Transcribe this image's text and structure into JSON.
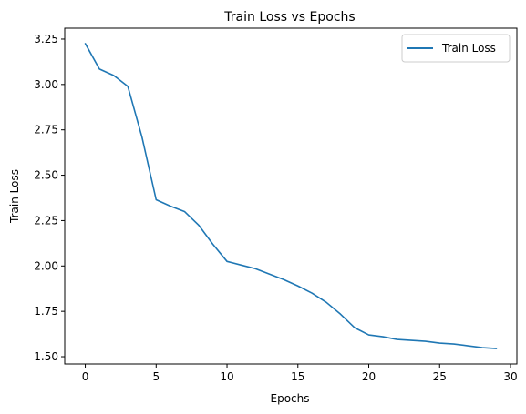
{
  "chart_data": {
    "type": "line",
    "title": "Train Loss vs Epochs",
    "xlabel": "Epochs",
    "ylabel": "Train Loss",
    "xlim": [
      -1.45,
      30.45
    ],
    "ylim": [
      1.46,
      3.31
    ],
    "xticks": [
      0,
      5,
      10,
      15,
      20,
      25,
      30
    ],
    "yticks": [
      1.5,
      1.75,
      2.0,
      2.25,
      2.5,
      2.75,
      3.0,
      3.25
    ],
    "ytick_labels": [
      "1.50",
      "1.75",
      "2.00",
      "2.25",
      "2.50",
      "2.75",
      "3.00",
      "3.25"
    ],
    "grid": false,
    "legend_position": "top-right",
    "series": [
      {
        "name": "Train Loss",
        "color": "#1f77b4",
        "x": [
          0,
          1,
          2,
          3,
          4,
          5,
          6,
          7,
          8,
          9,
          10,
          11,
          12,
          13,
          14,
          15,
          16,
          17,
          18,
          19,
          20,
          21,
          22,
          23,
          24,
          25,
          26,
          27,
          28,
          29
        ],
        "y": [
          3.225,
          3.085,
          3.05,
          2.99,
          2.71,
          2.365,
          2.33,
          2.3,
          2.225,
          2.12,
          2.025,
          2.005,
          1.985,
          1.955,
          1.925,
          1.89,
          1.85,
          1.8,
          1.735,
          1.66,
          1.62,
          1.61,
          1.595,
          1.59,
          1.585,
          1.575,
          1.57,
          1.56,
          1.55,
          1.545
        ]
      }
    ]
  }
}
